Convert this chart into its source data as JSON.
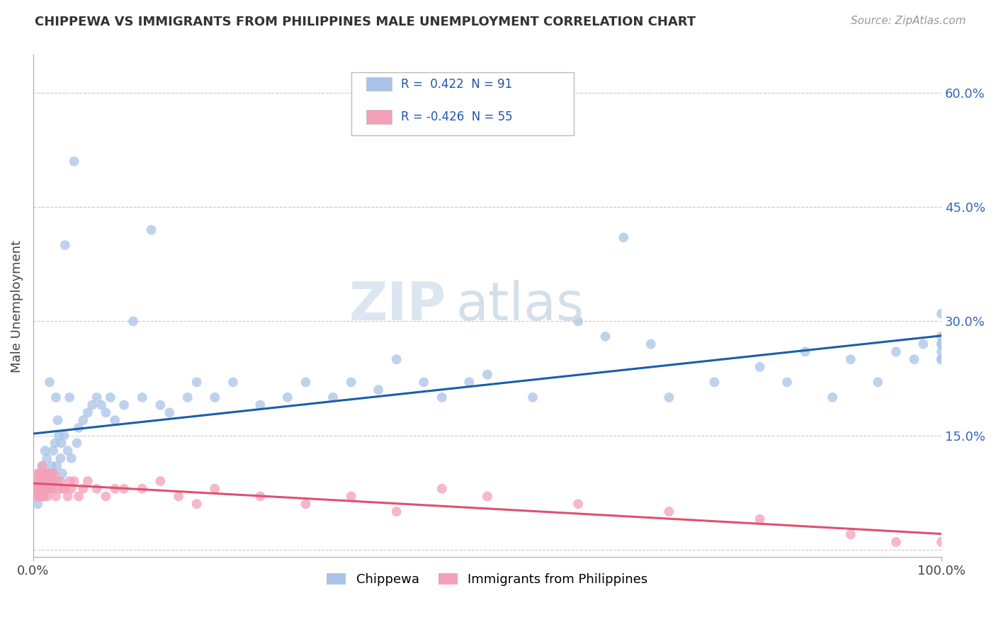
{
  "title": "CHIPPEWA VS IMMIGRANTS FROM PHILIPPINES MALE UNEMPLOYMENT CORRELATION CHART",
  "source": "Source: ZipAtlas.com",
  "ylabel": "Male Unemployment",
  "yticks": [
    0.0,
    0.15,
    0.3,
    0.45,
    0.6
  ],
  "xlim": [
    0.0,
    1.0
  ],
  "ylim": [
    -0.01,
    0.65
  ],
  "chippewa_color": "#aac4e8",
  "philippines_color": "#f4a0b8",
  "trend_chippewa_color": "#1a5fa8",
  "trend_philippines_color": "#e05070",
  "background_color": "#ffffff",
  "watermark_zip": "ZIP",
  "watermark_atlas": "atlas",
  "chippewa_x": [
    0.005,
    0.005,
    0.007,
    0.008,
    0.009,
    0.01,
    0.01,
    0.01,
    0.012,
    0.012,
    0.013,
    0.014,
    0.015,
    0.015,
    0.016,
    0.017,
    0.018,
    0.019,
    0.02,
    0.02,
    0.021,
    0.022,
    0.023,
    0.024,
    0.025,
    0.026,
    0.027,
    0.028,
    0.03,
    0.031,
    0.032,
    0.034,
    0.035,
    0.038,
    0.04,
    0.042,
    0.045,
    0.048,
    0.05,
    0.055,
    0.06,
    0.065,
    0.07,
    0.075,
    0.08,
    0.085,
    0.09,
    0.1,
    0.11,
    0.12,
    0.13,
    0.14,
    0.15,
    0.17,
    0.18,
    0.2,
    0.22,
    0.25,
    0.28,
    0.3,
    0.33,
    0.35,
    0.38,
    0.4,
    0.43,
    0.45,
    0.48,
    0.5,
    0.55,
    0.6,
    0.63,
    0.65,
    0.68,
    0.7,
    0.75,
    0.8,
    0.83,
    0.85,
    0.88,
    0.9,
    0.93,
    0.95,
    0.97,
    0.98,
    1.0,
    1.0,
    1.0,
    1.0,
    1.0,
    1.0,
    1.0
  ],
  "chippewa_y": [
    0.06,
    0.08,
    0.1,
    0.07,
    0.09,
    0.08,
    0.11,
    0.07,
    0.09,
    0.08,
    0.13,
    0.1,
    0.08,
    0.12,
    0.09,
    0.1,
    0.22,
    0.09,
    0.08,
    0.11,
    0.1,
    0.13,
    0.09,
    0.14,
    0.2,
    0.11,
    0.17,
    0.15,
    0.12,
    0.14,
    0.1,
    0.15,
    0.4,
    0.13,
    0.2,
    0.12,
    0.51,
    0.14,
    0.16,
    0.17,
    0.18,
    0.19,
    0.2,
    0.19,
    0.18,
    0.2,
    0.17,
    0.19,
    0.3,
    0.2,
    0.42,
    0.19,
    0.18,
    0.2,
    0.22,
    0.2,
    0.22,
    0.19,
    0.2,
    0.22,
    0.2,
    0.22,
    0.21,
    0.25,
    0.22,
    0.2,
    0.22,
    0.23,
    0.2,
    0.3,
    0.28,
    0.41,
    0.27,
    0.2,
    0.22,
    0.24,
    0.22,
    0.26,
    0.2,
    0.25,
    0.22,
    0.26,
    0.25,
    0.27,
    0.26,
    0.28,
    0.31,
    0.25,
    0.27,
    0.25,
    0.27
  ],
  "philippines_x": [
    0.003,
    0.004,
    0.005,
    0.005,
    0.005,
    0.006,
    0.006,
    0.007,
    0.007,
    0.008,
    0.008,
    0.009,
    0.01,
    0.01,
    0.01,
    0.011,
    0.011,
    0.012,
    0.012,
    0.013,
    0.014,
    0.015,
    0.015,
    0.016,
    0.017,
    0.018,
    0.019,
    0.02,
    0.021,
    0.022,
    0.023,
    0.025,
    0.027,
    0.028,
    0.03,
    0.032,
    0.035,
    0.038,
    0.04,
    0.042,
    0.045,
    0.05,
    0.055,
    0.06,
    0.07,
    0.08,
    0.09,
    0.1,
    0.12,
    0.14,
    0.16,
    0.18,
    0.2,
    0.25,
    0.3,
    0.35,
    0.4,
    0.45,
    0.5,
    0.6,
    0.7,
    0.8,
    0.9,
    0.95,
    1.0
  ],
  "philippines_y": [
    0.08,
    0.09,
    0.07,
    0.1,
    0.08,
    0.09,
    0.07,
    0.1,
    0.08,
    0.09,
    0.07,
    0.1,
    0.08,
    0.09,
    0.11,
    0.08,
    0.09,
    0.1,
    0.07,
    0.09,
    0.1,
    0.08,
    0.09,
    0.07,
    0.1,
    0.08,
    0.09,
    0.1,
    0.08,
    0.09,
    0.1,
    0.07,
    0.09,
    0.08,
    0.09,
    0.08,
    0.08,
    0.07,
    0.09,
    0.08,
    0.09,
    0.07,
    0.08,
    0.09,
    0.08,
    0.07,
    0.08,
    0.08,
    0.08,
    0.09,
    0.07,
    0.06,
    0.08,
    0.07,
    0.06,
    0.07,
    0.05,
    0.08,
    0.07,
    0.06,
    0.05,
    0.04,
    0.02,
    0.01,
    0.01
  ]
}
